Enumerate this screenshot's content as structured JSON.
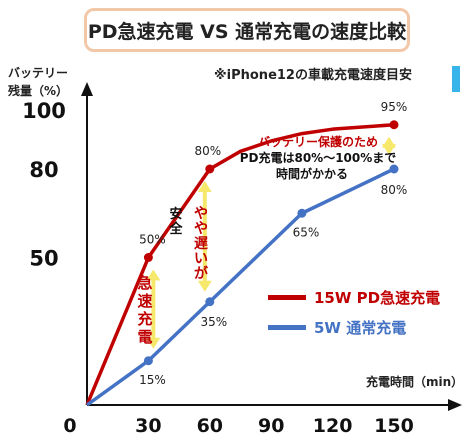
{
  "title": "PD急速充電 VS 通常充電の速度比較",
  "subtitle": "※iPhone12の車載充電速度目安",
  "chart_data": {
    "type": "line",
    "ylabel_line1": "バッテリー",
    "ylabel_line2": "残量（%）",
    "xlabel": "充電時間（min）",
    "x_ticks": [
      "0",
      "30",
      "60",
      "90",
      "120",
      "150"
    ],
    "x_tick_values": [
      0,
      30,
      60,
      90,
      120,
      150
    ],
    "y_ticks": [
      "50",
      "80",
      "100"
    ],
    "y_tick_values": [
      50,
      80,
      100
    ],
    "xlim": [
      0,
      150
    ],
    "series": [
      {
        "name": "15W PD急速充電",
        "color": "#c00000",
        "x": [
          0,
          30,
          60,
          75,
          90,
          105,
          120,
          150
        ],
        "y": [
          0,
          50,
          80,
          86,
          89.5,
          92,
          93.5,
          95
        ],
        "labeled_points": [
          {
            "x": 30,
            "y": 50,
            "label": "50%"
          },
          {
            "x": 60,
            "y": 80,
            "label": "80%"
          },
          {
            "x": 150,
            "y": 95,
            "label": "95%"
          }
        ]
      },
      {
        "name": "5W 通常充電",
        "color": "#4472c4",
        "x": [
          0,
          30,
          60,
          105,
          150
        ],
        "y": [
          0,
          15,
          35,
          65,
          80
        ],
        "labeled_points": [
          {
            "x": 30,
            "y": 15,
            "label": "15%"
          },
          {
            "x": 60,
            "y": 35,
            "label": "35%"
          },
          {
            "x": 105,
            "y": 65,
            "label": "65%"
          },
          {
            "x": 150,
            "y": 80,
            "label": "80%"
          }
        ]
      }
    ],
    "annotations": {
      "note_line1": "バッテリー保護のため",
      "note_line2": "PD充電は80%〜100%まで",
      "note_line3": "時間がかかる",
      "gap_30_text": "急速充電",
      "gap_60_red_text": "やや遅いが",
      "gap_60_black_text": "安全"
    },
    "arrow_color": "#f5e86a"
  }
}
